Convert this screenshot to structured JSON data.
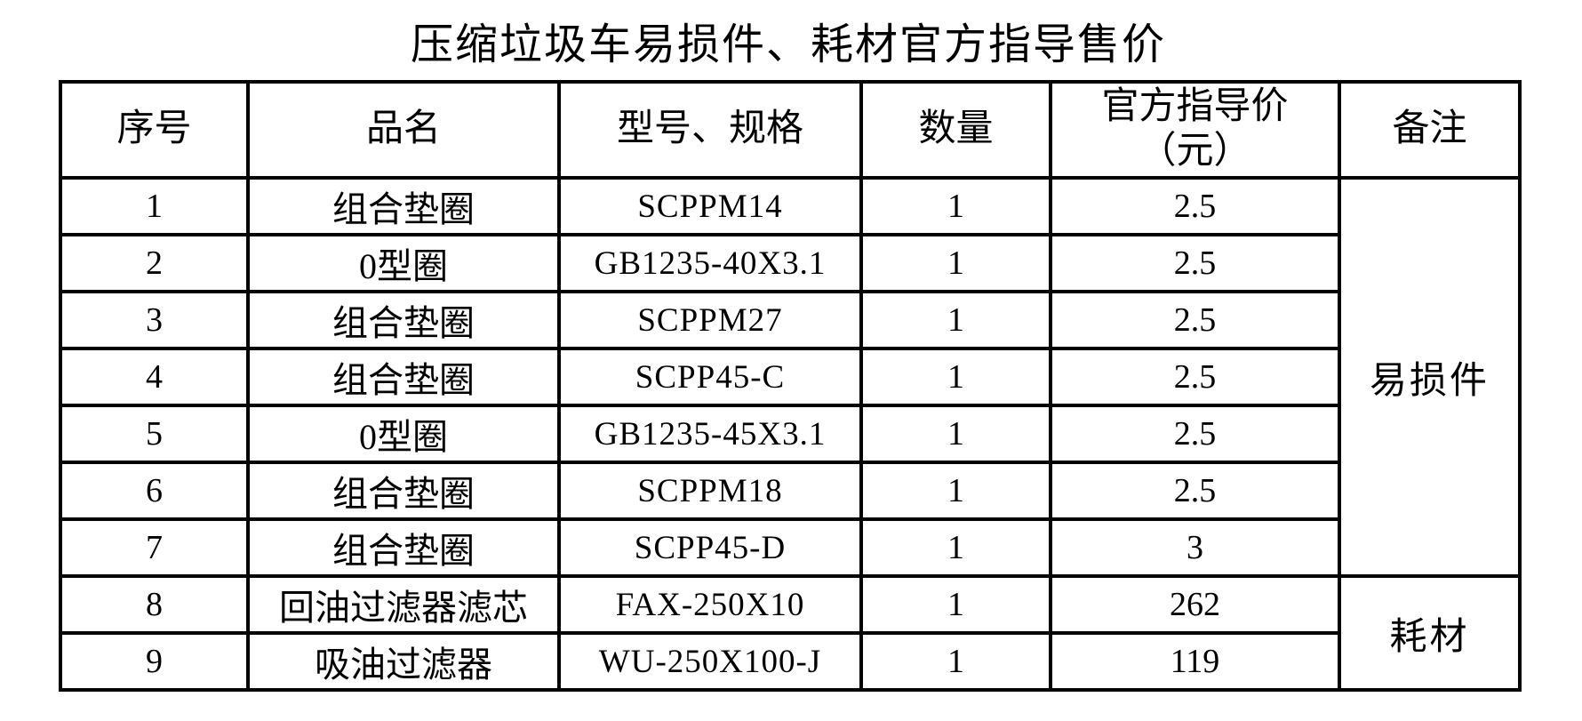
{
  "title": "压缩垃圾车易损件、耗材官方指导售价",
  "table": {
    "headers": {
      "index": "序号",
      "name": "品名",
      "model": "型号、规格",
      "qty": "数量",
      "price_line1": "官方指导价",
      "price_line2": "（元）",
      "remark": "备注"
    },
    "rows": [
      [
        "1",
        "组合垫圈",
        "SCPPM14",
        "1",
        "2.5"
      ],
      [
        "2",
        "0型圈",
        "GB1235-40X3.1",
        "1",
        "2.5"
      ],
      [
        "3",
        "组合垫圈",
        "SCPPM27",
        "1",
        "2.5"
      ],
      [
        "4",
        "组合垫圈",
        "SCPP45-C",
        "1",
        "2.5"
      ],
      [
        "5",
        "0型圈",
        "GB1235-45X3.1",
        "1",
        "2.5"
      ],
      [
        "6",
        "组合垫圈",
        "SCPPM18",
        "1",
        "2.5"
      ],
      [
        "7",
        "组合垫圈",
        "SCPP45-D",
        "1",
        "3"
      ],
      [
        "8",
        "回油过滤器滤芯",
        "FAX-250X10",
        "1",
        "262"
      ],
      [
        "9",
        "吸油过滤器",
        "WU-250X100-J",
        "1",
        "119"
      ]
    ],
    "remarks": {
      "wear_parts": "易损件",
      "consumables": "耗材"
    }
  }
}
